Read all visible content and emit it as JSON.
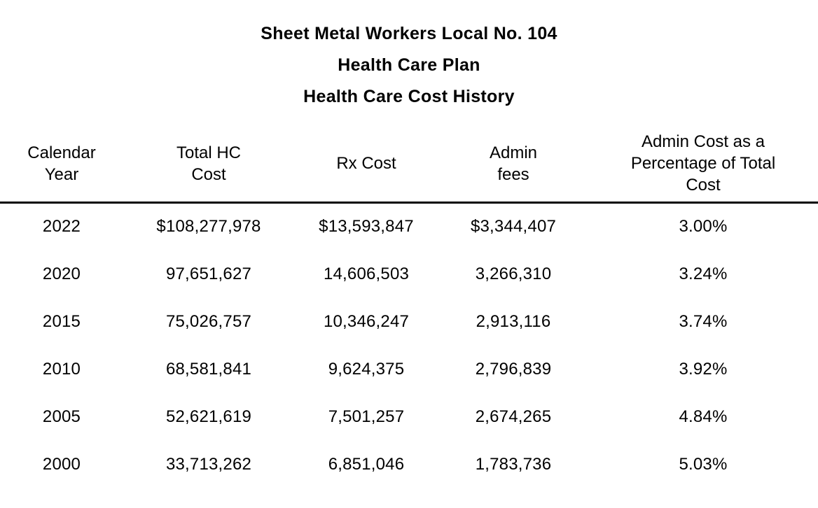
{
  "title": {
    "line1": "Sheet Metal Workers Local No. 104",
    "line2": "Health Care Plan",
    "line3": "Health Care Cost History"
  },
  "table": {
    "headers": [
      "Calendar\nYear",
      "Total HC\nCost",
      "Rx Cost",
      "Admin\nfees",
      "Admin Cost as a\nPercentage of Total\nCost"
    ],
    "rows": [
      [
        "2022",
        "$108,277,978",
        "$13,593,847",
        "$3,344,407",
        "3.00%"
      ],
      [
        "2020",
        "97,651,627",
        "14,606,503",
        "3,266,310",
        "3.24%"
      ],
      [
        "2015",
        "75,026,757",
        "10,346,247",
        "2,913,116",
        "3.74%"
      ],
      [
        "2010",
        "68,581,841",
        "9,624,375",
        "2,796,839",
        "3.92%"
      ],
      [
        "2005",
        "52,621,619",
        "7,501,257",
        "2,674,265",
        "4.84%"
      ],
      [
        "2000",
        "33,713,262",
        "6,851,046",
        "1,783,736",
        "5.03%"
      ]
    ]
  },
  "colors": {
    "text": "#000000",
    "background": "#ffffff",
    "header_rule": "#000000"
  }
}
